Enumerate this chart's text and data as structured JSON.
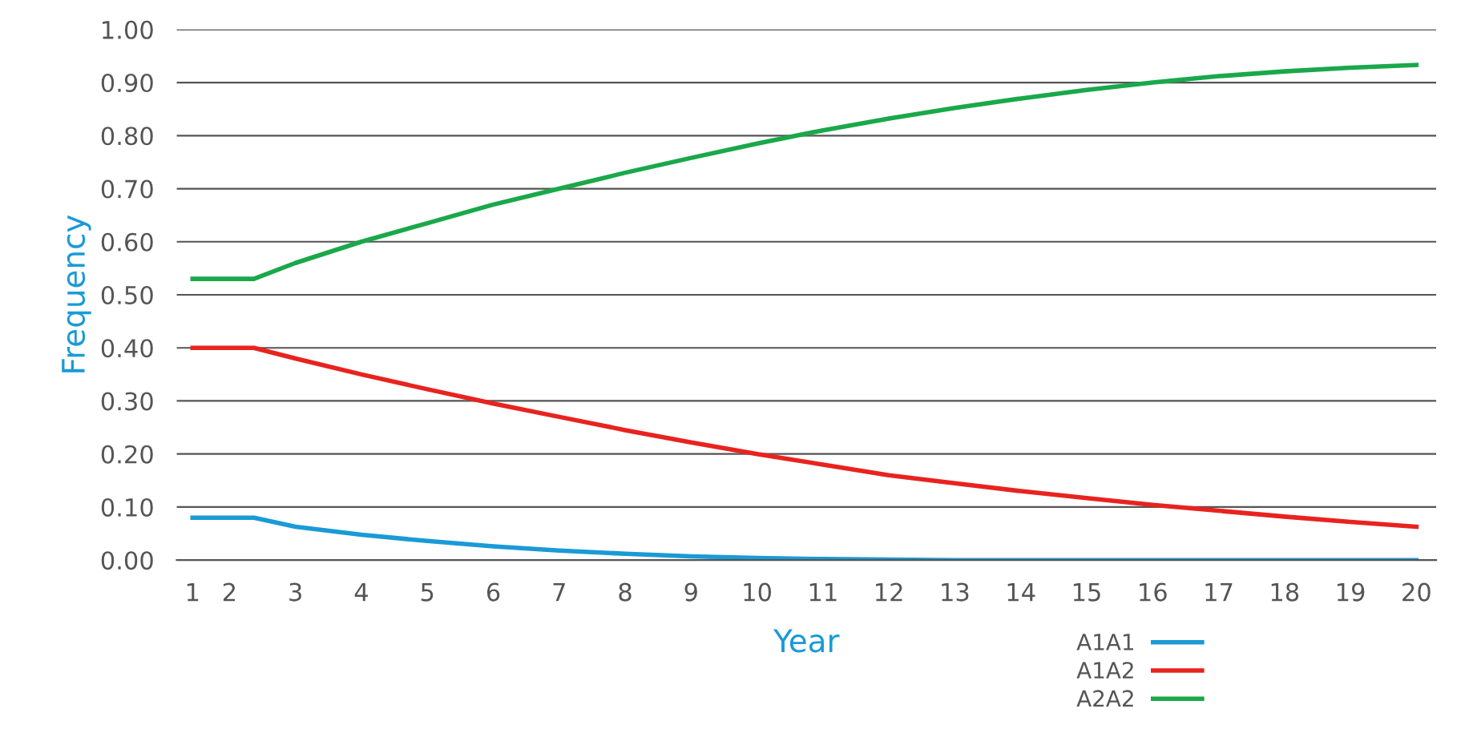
{
  "chart_data": {
    "type": "line",
    "xlabel": "Year",
    "ylabel": "Frequency",
    "xlim": [
      1.2,
      20.3
    ],
    "ylim": [
      0,
      1
    ],
    "xticks": [
      {
        "value": 1.44,
        "label": "1"
      },
      2,
      3,
      4,
      5,
      6,
      7,
      8,
      9,
      10,
      11,
      12,
      13,
      14,
      15,
      16,
      17,
      18,
      19,
      20
    ],
    "yticks": [
      {
        "value": 0,
        "label": "0.00"
      },
      {
        "value": 0.1,
        "label": "0.10"
      },
      {
        "value": 0.2,
        "label": "0.20"
      },
      {
        "value": 0.3,
        "label": "0.30"
      },
      {
        "value": 0.4,
        "label": "0.40"
      },
      {
        "value": 0.5,
        "label": "0.50"
      },
      {
        "value": 0.6,
        "label": "0.60"
      },
      {
        "value": 0.7,
        "label": "0.70"
      },
      {
        "value": 0.8,
        "label": "0.80"
      },
      {
        "value": 0.9,
        "label": "0.90"
      },
      {
        "value": 1,
        "label": "1.00"
      }
    ],
    "grid": "y",
    "legend": "bottom right",
    "marker": "none",
    "line_style": "solid",
    "x": [
      1.44,
      2.37,
      3,
      4,
      5,
      6,
      7,
      8,
      9,
      10,
      11,
      12,
      13,
      14,
      15,
      16,
      17,
      18,
      19,
      20
    ],
    "series": [
      {
        "name": "A1A1",
        "color": "#1a9ad6",
        "values": [
          0.08,
          0.08,
          0.063,
          0.048,
          0.036,
          0.026,
          0.018,
          0.012,
          0.007,
          0.004,
          0.002,
          0.001,
          0,
          0,
          0,
          0,
          0,
          0,
          0,
          0
        ]
      },
      {
        "name": "A1A2",
        "color": "#e8231f",
        "values": [
          0.4,
          0.4,
          0.38,
          0.35,
          0.322,
          0.295,
          0.27,
          0.245,
          0.222,
          0.2,
          0.18,
          0.16,
          0.145,
          0.13,
          0.117,
          0.104,
          0.093,
          0.082,
          0.072,
          0.063
        ]
      },
      {
        "name": "A2A2",
        "color": "#1aa84a",
        "values": [
          0.53,
          0.53,
          0.56,
          0.6,
          0.635,
          0.67,
          0.7,
          0.73,
          0.758,
          0.785,
          0.81,
          0.832,
          0.852,
          0.87,
          0.886,
          0.9,
          0.912,
          0.921,
          0.928,
          0.933
        ]
      }
    ]
  }
}
